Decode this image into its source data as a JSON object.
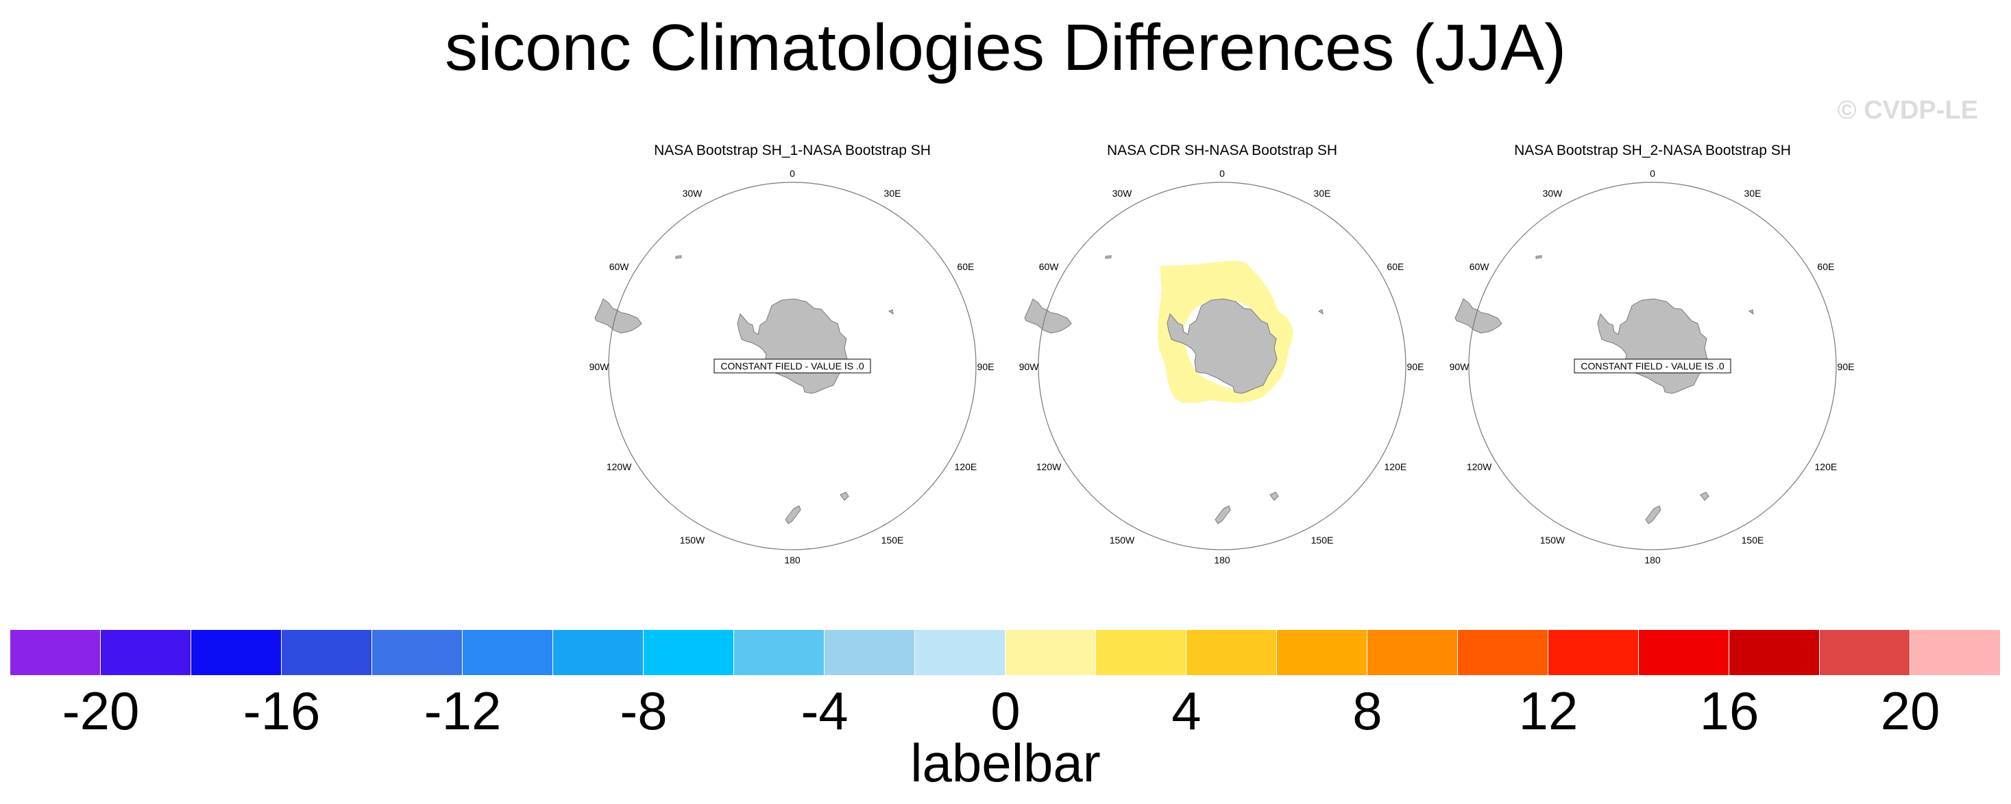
{
  "title": "siconc Climatologies Differences (JJA)",
  "watermark": "© CVDP-LE",
  "panels": [
    {
      "title": "NASA Bootstrap SH_1-NASA Bootstrap SH",
      "constant_note": "CONSTANT FIELD - VALUE IS .0",
      "has_anomaly": false
    },
    {
      "title": "NASA CDR SH-NASA Bootstrap SH",
      "constant_note": "",
      "has_anomaly": true
    },
    {
      "title": "NASA Bootstrap SH_2-NASA Bootstrap SH",
      "constant_note": "CONSTANT FIELD - VALUE IS .0",
      "has_anomaly": false
    }
  ],
  "longitude_labels": [
    "0",
    "30E",
    "60E",
    "90E",
    "120E",
    "150E",
    "180",
    "150W",
    "120W",
    "90W",
    "60W",
    "30W"
  ],
  "colorbar": {
    "label": "labelbar",
    "colors": [
      "#8b24e8",
      "#4414f0",
      "#0d0df5",
      "#2f4ce0",
      "#3a74e6",
      "#2a88f5",
      "#16a4f5",
      "#00c2ff",
      "#5ac6f2",
      "#9cd2ee",
      "#bde4f7",
      "#fff5a0",
      "#ffe34a",
      "#ffc81e",
      "#ffa800",
      "#ff8a00",
      "#ff5a00",
      "#ff1e00",
      "#f00000",
      "#cc0000",
      "#de4646",
      "#ffb4b4"
    ],
    "tick_labels": [
      "-20",
      "-16",
      "-12",
      "-8",
      "-4",
      "0",
      "4",
      "8",
      "12",
      "16",
      "20"
    ]
  },
  "colors": {
    "land": "#bdbdbd",
    "land_edge": "#7a7a7a",
    "anomaly_fill": "#fff79e"
  }
}
